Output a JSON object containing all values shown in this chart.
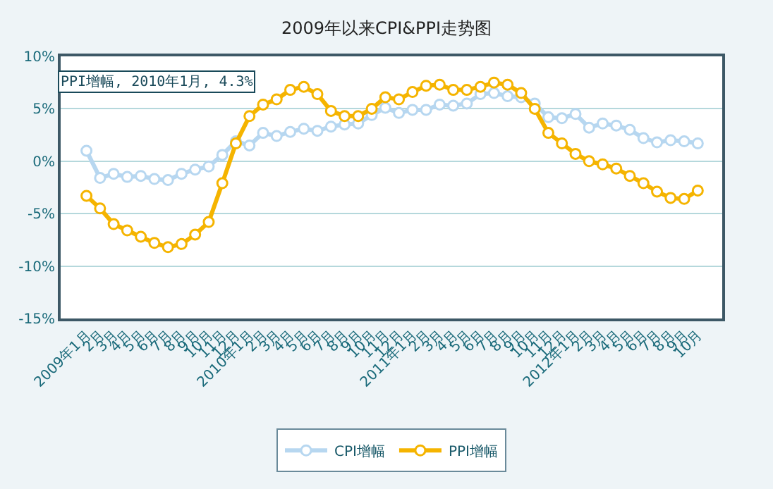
{
  "chart_data": {
    "type": "line",
    "title": "2009年以来CPI&PPI走势图",
    "categories": [
      "2009年1月",
      "2月",
      "3月",
      "4月",
      "5月",
      "6月",
      "7月",
      "8月",
      "9月",
      "10月",
      "11月",
      "12月",
      "2010年1月",
      "2月",
      "3月",
      "4月",
      "5月",
      "6月",
      "7月",
      "8月",
      "9月",
      "10月",
      "11月",
      "12月",
      "2011年1月",
      "2月",
      "3月",
      "4月",
      "5月",
      "6月",
      "7月",
      "8月",
      "9月",
      "10月",
      "11月",
      "12月",
      "2012年1月",
      "2月",
      "3月",
      "4月",
      "5月",
      "6月",
      "7月",
      "8月",
      "9月",
      "10月"
    ],
    "series": [
      {
        "name": "CPI增幅",
        "color": "#b7d7f0",
        "values": [
          1.0,
          -1.6,
          -1.2,
          -1.5,
          -1.4,
          -1.7,
          -1.8,
          -1.2,
          -0.8,
          -0.5,
          0.6,
          1.9,
          1.5,
          2.7,
          2.4,
          2.8,
          3.1,
          2.9,
          3.3,
          3.5,
          3.6,
          4.4,
          5.1,
          4.6,
          4.9,
          4.9,
          5.4,
          5.3,
          5.5,
          6.4,
          6.5,
          6.2,
          6.1,
          5.5,
          4.2,
          4.1,
          4.5,
          3.2,
          3.6,
          3.4,
          3.0,
          2.2,
          1.8,
          2.0,
          1.9,
          1.7
        ]
      },
      {
        "name": "PPI增幅",
        "color": "#f5b400",
        "values": [
          -3.3,
          -4.5,
          -6.0,
          -6.6,
          -7.2,
          -7.8,
          -8.2,
          -7.9,
          -7.0,
          -5.8,
          -2.1,
          1.7,
          4.3,
          5.4,
          5.9,
          6.8,
          7.1,
          6.4,
          4.8,
          4.3,
          4.3,
          5.0,
          6.1,
          5.9,
          6.6,
          7.2,
          7.3,
          6.8,
          6.8,
          7.1,
          7.5,
          7.3,
          6.5,
          5.0,
          2.7,
          1.7,
          0.7,
          0.0,
          -0.3,
          -0.7,
          -1.4,
          -2.1,
          -2.9,
          -3.5,
          -3.6,
          -2.8
        ]
      }
    ],
    "ylim": [
      -15,
      10
    ],
    "yticks": [
      {
        "value": -15,
        "label": "-15%"
      },
      {
        "value": -10,
        "label": "-10%"
      },
      {
        "value": -5,
        "label": "-5%"
      },
      {
        "value": 0,
        "label": "0%"
      },
      {
        "value": 5,
        "label": "5%"
      },
      {
        "value": 10,
        "label": "10%"
      }
    ],
    "annotations": [
      {
        "text": "PPI增幅, 2010年1月, 4.3%",
        "x": "2010年1月",
        "y": 4.3
      }
    ],
    "grid": "y",
    "legend": "bottom",
    "marker": "circle",
    "line_style": "solid"
  }
}
